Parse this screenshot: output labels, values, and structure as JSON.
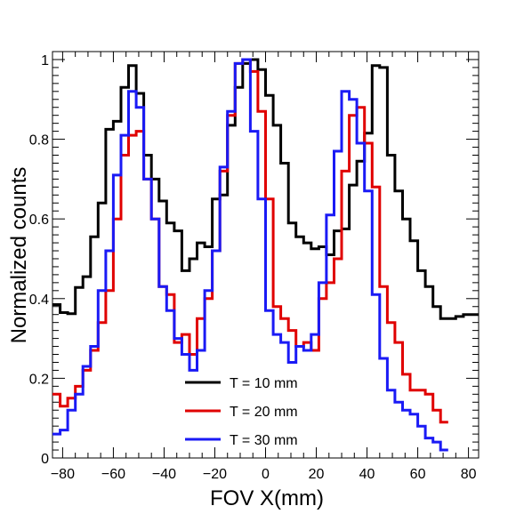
{
  "chart_data": {
    "type": "line",
    "style": "step-histogram",
    "xlabel": "FOV X(mm)",
    "ylabel": "Normalized counts",
    "xlim": [
      -84,
      84
    ],
    "ylim": [
      0,
      1.02
    ],
    "xticks": [
      -80,
      -60,
      -40,
      -20,
      0,
      20,
      40,
      60,
      80
    ],
    "xtick_labels": [
      "−80",
      "−60",
      "−40",
      "−20",
      "0",
      "20",
      "40",
      "60",
      "80"
    ],
    "yticks": [
      0,
      0.2,
      0.4,
      0.6,
      0.8,
      1
    ],
    "ytick_labels": [
      "0",
      "0.2",
      "0.4",
      "0.6",
      "0.8",
      "1"
    ],
    "grid": false,
    "legend_position": "lower-center",
    "bin_edges_start": -84,
    "bin_width": 3,
    "series": [
      {
        "name": "T = 10 mm",
        "color": "#000000",
        "values": [
          0.385,
          0.365,
          0.362,
          0.428,
          0.455,
          0.555,
          0.64,
          0.825,
          0.845,
          0.93,
          0.985,
          0.915,
          0.76,
          0.7,
          0.645,
          0.59,
          0.57,
          0.47,
          0.5,
          0.54,
          0.53,
          0.65,
          0.66,
          0.835,
          0.93,
          0.99,
          1.0,
          0.975,
          0.91,
          0.835,
          0.74,
          0.59,
          0.555,
          0.54,
          0.525,
          0.53,
          0.51,
          0.57,
          0.575,
          0.685,
          0.745,
          0.815,
          0.985,
          0.98,
          0.76,
          0.67,
          0.6,
          0.545,
          0.47,
          0.43,
          0.38,
          0.35,
          0.35,
          0.355,
          0.36,
          0.36
        ]
      },
      {
        "name": "T = 20 mm",
        "color": "#e00000",
        "values": [
          0.16,
          0.13,
          0.15,
          0.18,
          0.22,
          0.27,
          0.34,
          0.42,
          0.6,
          0.76,
          0.81,
          0.82,
          0.7,
          0.6,
          0.43,
          0.41,
          0.29,
          0.31,
          0.26,
          0.35,
          0.4,
          0.52,
          0.72,
          0.86,
          0.99,
          1.0,
          0.97,
          0.87,
          0.65,
          0.38,
          0.35,
          0.32,
          0.28,
          0.29,
          0.27,
          0.4,
          0.44,
          0.5,
          0.72,
          0.86,
          0.88,
          0.79,
          0.68,
          0.43,
          0.34,
          0.29,
          0.21,
          0.17,
          0.17,
          0.16,
          0.12,
          0.09
        ]
      },
      {
        "name": "T = 30 mm",
        "color": "#1a1af5",
        "values": [
          0.06,
          0.07,
          0.12,
          0.16,
          0.23,
          0.28,
          0.42,
          0.52,
          0.71,
          0.81,
          0.92,
          0.88,
          0.7,
          0.6,
          0.43,
          0.37,
          0.3,
          0.26,
          0.22,
          0.27,
          0.42,
          0.52,
          0.73,
          0.87,
          0.99,
          1.0,
          0.82,
          0.65,
          0.37,
          0.31,
          0.29,
          0.24,
          0.28,
          0.27,
          0.31,
          0.44,
          0.61,
          0.77,
          0.92,
          0.9,
          0.79,
          0.67,
          0.41,
          0.25,
          0.17,
          0.14,
          0.12,
          0.11,
          0.08,
          0.05,
          0.04,
          0.02
        ]
      }
    ]
  }
}
